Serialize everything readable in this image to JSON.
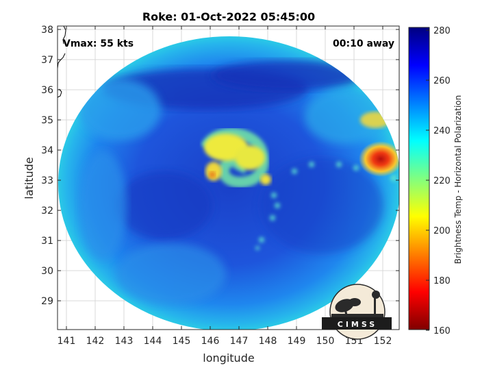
{
  "title": "Roke: 01-Oct-2022 05:45:00",
  "annotations": {
    "vmax": "Vmax: 55 kts",
    "away": "00:10 away"
  },
  "axes": {
    "xlabel": "longitude",
    "ylabel": "latitude",
    "xticks": [
      "141",
      "142",
      "143",
      "144",
      "145",
      "146",
      "147",
      "148",
      "149",
      "150",
      "151",
      "152"
    ],
    "yticks": [
      "38",
      "37",
      "36",
      "35",
      "34",
      "33",
      "32",
      "31",
      "30",
      "29"
    ],
    "xlim": [
      140.7,
      152.6
    ],
    "ylim": [
      28.1,
      38.1
    ],
    "grid": true
  },
  "colorbar": {
    "label": "Brightness Temp - Horizontal Polarization",
    "ticks": [
      "280",
      "260",
      "240",
      "220",
      "200",
      "180",
      "160"
    ],
    "range": [
      160,
      280
    ],
    "colormap": "jet"
  },
  "swath": {
    "center_lon": 146.7,
    "center_lat": 33.1,
    "storm_center_lon": 146.3,
    "storm_center_lat": 33.0
  },
  "logo": {
    "text": "CIMSS"
  },
  "colors": {
    "background_swath": "#1e4fd8",
    "cold_core": "#f2f03a",
    "hot_spot": "#c0150f",
    "outer_edge": "#29c6e8"
  }
}
